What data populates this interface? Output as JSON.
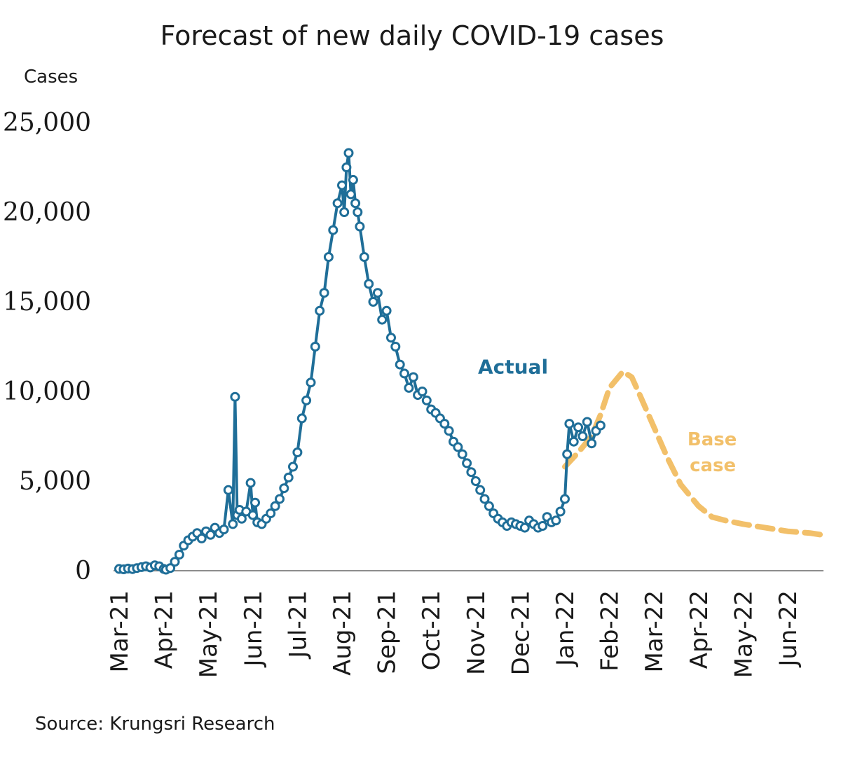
{
  "chart_data": {
    "type": "line",
    "title": "Forecast of new daily COVID-19 cases",
    "ylabel": "Cases",
    "xlabel": "",
    "ylim": [
      0,
      25000
    ],
    "yticks": [
      0,
      5000,
      10000,
      15000,
      20000,
      25000
    ],
    "ytick_labels": [
      "0",
      "5,000",
      "10,000",
      "15,000",
      "20,000",
      "25,000"
    ],
    "month_labels": [
      "Mar-21",
      "Apr-21",
      "May-21",
      "Jun-21",
      "Jul-21",
      "Aug-21",
      "Sep-21",
      "Oct-21",
      "Nov-21",
      "Dec-21",
      "Jan-22",
      "Feb-22",
      "Mar-22",
      "Apr-22",
      "May-22",
      "Jun-22"
    ],
    "x_unit": "months since Mar-21",
    "series": [
      {
        "name": "Actual",
        "color": "#1f6e98",
        "style": "line-with-markers",
        "x": [
          0,
          0.1,
          0.2,
          0.3,
          0.4,
          0.5,
          0.6,
          0.7,
          0.8,
          0.9,
          1.0,
          1.05,
          1.15,
          1.25,
          1.35,
          1.45,
          1.55,
          1.65,
          1.75,
          1.85,
          1.95,
          2.05,
          2.15,
          2.25,
          2.35,
          2.45,
          2.55,
          2.6,
          2.65,
          2.7,
          2.75,
          2.85,
          2.95,
          3.0,
          3.05,
          3.1,
          3.2,
          3.3,
          3.4,
          3.5,
          3.6,
          3.7,
          3.8,
          3.9,
          4.0,
          4.1,
          4.2,
          4.3,
          4.4,
          4.5,
          4.6,
          4.7,
          4.8,
          4.9,
          5.0,
          5.05,
          5.1,
          5.15,
          5.2,
          5.25,
          5.3,
          5.35,
          5.4,
          5.5,
          5.6,
          5.7,
          5.8,
          5.9,
          6.0,
          6.1,
          6.2,
          6.3,
          6.4,
          6.5,
          6.6,
          6.7,
          6.8,
          6.9,
          7.0,
          7.1,
          7.2,
          7.3,
          7.4,
          7.5,
          7.6,
          7.7,
          7.8,
          7.9,
          8.0,
          8.1,
          8.2,
          8.3,
          8.4,
          8.5,
          8.6,
          8.7,
          8.8,
          8.9,
          9.0,
          9.1,
          9.2,
          9.3,
          9.4,
          9.5,
          9.6,
          9.7,
          9.8,
          9.9,
          10.0,
          10.05,
          10.1,
          10.2,
          10.3,
          10.4,
          10.5,
          10.6,
          10.7,
          10.8
        ],
        "values": [
          100,
          80,
          120,
          90,
          150,
          200,
          250,
          180,
          300,
          250,
          100,
          60,
          150,
          500,
          900,
          1400,
          1700,
          1900,
          2100,
          1800,
          2200,
          2000,
          2400,
          2100,
          2300,
          4500,
          2600,
          9700,
          3100,
          3400,
          2900,
          3300,
          4900,
          3100,
          3800,
          2700,
          2600,
          2900,
          3200,
          3600,
          4000,
          4600,
          5200,
          5800,
          6600,
          8500,
          9500,
          10500,
          12500,
          14500,
          15500,
          17500,
          19000,
          20500,
          21500,
          20000,
          22500,
          23300,
          21000,
          21800,
          20500,
          20000,
          19200,
          17500,
          16000,
          15000,
          15500,
          14000,
          14500,
          13000,
          12500,
          11500,
          11000,
          10200,
          10800,
          9800,
          10000,
          9500,
          9000,
          8800,
          8500,
          8200,
          7800,
          7200,
          6900,
          6500,
          6000,
          5500,
          5000,
          4500,
          4000,
          3600,
          3200,
          2900,
          2700,
          2500,
          2700,
          2600,
          2500,
          2400,
          2800,
          2600,
          2400,
          2500,
          3000,
          2700,
          2800,
          3300,
          4000,
          6500,
          8200,
          7200,
          8000,
          7500,
          8300,
          7100,
          7800,
          8100
        ]
      },
      {
        "name": "Base case",
        "color": "#f2c06a",
        "style": "dashed",
        "x": [
          10.0,
          10.3,
          10.6,
          10.8,
          11.0,
          11.3,
          11.5,
          11.7,
          12.0,
          12.3,
          12.6,
          13.0,
          13.3,
          13.6,
          14.0,
          14.5,
          15.0,
          15.5,
          15.9
        ],
        "values": [
          5800,
          6600,
          7500,
          8700,
          10200,
          11100,
          10800,
          9700,
          8000,
          6300,
          4800,
          3600,
          3000,
          2800,
          2600,
          2400,
          2200,
          2100,
          1950
        ]
      }
    ],
    "annotations": [
      {
        "text": "Actual",
        "series": "Actual"
      },
      {
        "text": "Base",
        "series": "Base case"
      },
      {
        "text": "case",
        "series": "Base case"
      }
    ],
    "source": "Source: Krungsri Research"
  }
}
